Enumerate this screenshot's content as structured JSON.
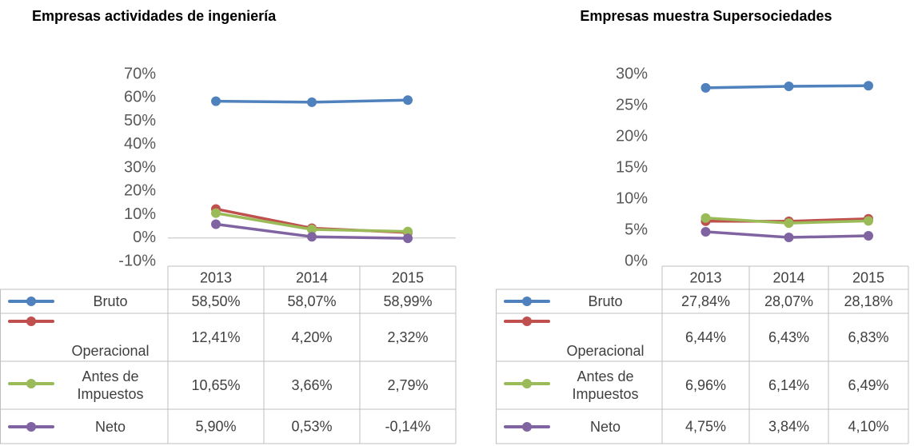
{
  "chart_data": [
    {
      "type": "line",
      "title": "Empresas actividades de ingeniería",
      "categories": [
        "2013",
        "2014",
        "2015"
      ],
      "ylim": [
        -10,
        70
      ],
      "yticks": [
        {
          "value": -10,
          "label": "-10%"
        },
        {
          "value": 0,
          "label": "0%"
        },
        {
          "value": 10,
          "label": "10%"
        },
        {
          "value": 20,
          "label": "20%"
        },
        {
          "value": 30,
          "label": "30%"
        },
        {
          "value": 40,
          "label": "40%"
        },
        {
          "value": 50,
          "label": "50%"
        },
        {
          "value": 60,
          "label": "60%"
        },
        {
          "value": 70,
          "label": "70%"
        }
      ],
      "series": [
        {
          "name": "Bruto",
          "color": "#4f81bd",
          "values": [
            58.5,
            58.07,
            58.99
          ],
          "value_labels": [
            "58,50%",
            "58,07%",
            "58,99%"
          ]
        },
        {
          "name": "Operacional",
          "color": "#c0504d",
          "values": [
            12.41,
            4.2,
            2.32
          ],
          "value_labels": [
            "12,41%",
            "4,20%",
            "2,32%"
          ]
        },
        {
          "name": "Antes de Impuestos",
          "color": "#9bbb59",
          "values": [
            10.65,
            3.66,
            2.79
          ],
          "value_labels": [
            "10,65%",
            "3,66%",
            "2,79%"
          ]
        },
        {
          "name": "Neto",
          "color": "#8064a2",
          "values": [
            5.9,
            0.53,
            -0.14
          ],
          "value_labels": [
            "5,90%",
            "0,53%",
            "-0,14%"
          ]
        }
      ]
    },
    {
      "type": "line",
      "title": "Empresas muestra Supersociedades",
      "categories": [
        "2013",
        "2014",
        "2015"
      ],
      "ylim": [
        0,
        30
      ],
      "yticks": [
        {
          "value": 0,
          "label": "0%"
        },
        {
          "value": 5,
          "label": "5%"
        },
        {
          "value": 10,
          "label": "10%"
        },
        {
          "value": 15,
          "label": "15%"
        },
        {
          "value": 20,
          "label": "20%"
        },
        {
          "value": 25,
          "label": "25%"
        },
        {
          "value": 30,
          "label": "30%"
        }
      ],
      "series": [
        {
          "name": "Bruto",
          "color": "#4f81bd",
          "values": [
            27.84,
            28.07,
            28.18
          ],
          "value_labels": [
            "27,84%",
            "28,07%",
            "28,18%"
          ]
        },
        {
          "name": "Operacional",
          "color": "#c0504d",
          "values": [
            6.44,
            6.43,
            6.83
          ],
          "value_labels": [
            "6,44%",
            "6,43%",
            "6,83%"
          ]
        },
        {
          "name": "Antes de Impuestos",
          "color": "#9bbb59",
          "values": [
            6.96,
            6.14,
            6.49
          ],
          "value_labels": [
            "6,96%",
            "6,14%",
            "6,49%"
          ]
        },
        {
          "name": "Neto",
          "color": "#8064a2",
          "values": [
            4.75,
            3.84,
            4.1
          ],
          "value_labels": [
            "4,75%",
            "3,84%",
            "4,10%"
          ]
        }
      ]
    }
  ]
}
